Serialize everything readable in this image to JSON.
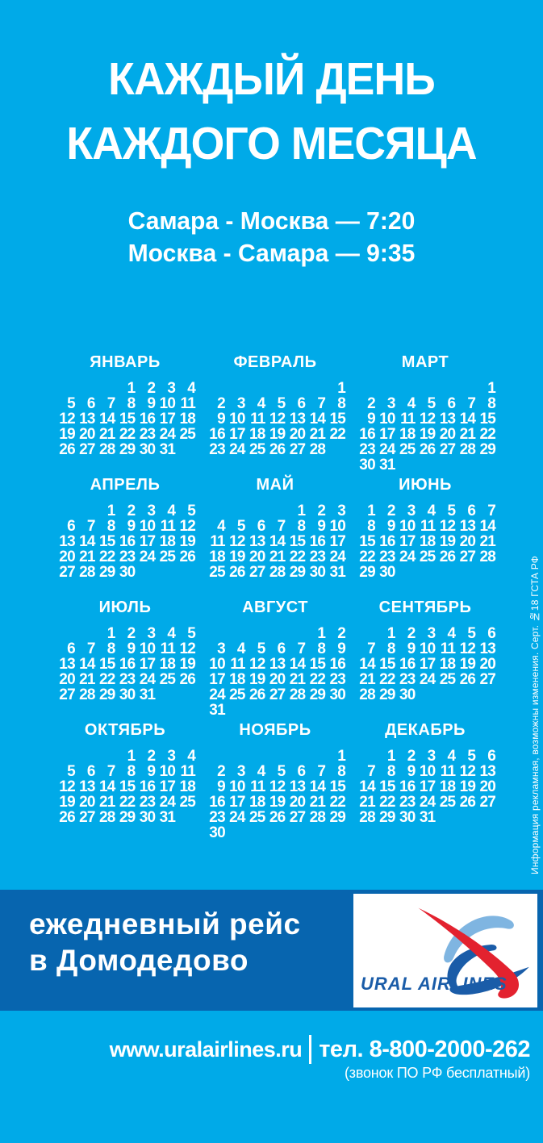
{
  "colors": {
    "background": "#00AAE8",
    "band": "#0765AF",
    "logo_blue": "#1A5CA8",
    "logo_lightblue": "#7FB5E1",
    "logo_red": "#E3222F",
    "text": "#FFFFFF"
  },
  "header": {
    "line1": "КАЖДЫЙ ДЕНЬ",
    "line2": "КАЖДОГО МЕСЯЦА"
  },
  "schedule": {
    "line1": "Самара - Москва — 7:20",
    "line2": "Москва - Самара — 9:35"
  },
  "calendar": {
    "months": [
      {
        "name": "ЯНВАРЬ",
        "weeks": [
          [
            "",
            "",
            "",
            "1",
            "2",
            "3",
            "4"
          ],
          [
            "5",
            "6",
            "7",
            "8",
            "9",
            "10",
            "11"
          ],
          [
            "12",
            "13",
            "14",
            "15",
            "16",
            "17",
            "18"
          ],
          [
            "19",
            "20",
            "21",
            "22",
            "23",
            "24",
            "25"
          ],
          [
            "26",
            "27",
            "28",
            "29",
            "30",
            "31",
            ""
          ]
        ]
      },
      {
        "name": "ФЕВРАЛЬ",
        "weeks": [
          [
            "",
            "",
            "",
            "",
            "",
            "",
            "1"
          ],
          [
            "2",
            "3",
            "4",
            "5",
            "6",
            "7",
            "8"
          ],
          [
            "9",
            "10",
            "11",
            "12",
            "13",
            "14",
            "15"
          ],
          [
            "16",
            "17",
            "18",
            "19",
            "20",
            "21",
            "22"
          ],
          [
            "23",
            "24",
            "25",
            "26",
            "27",
            "28",
            ""
          ]
        ]
      },
      {
        "name": "МАРТ",
        "weeks": [
          [
            "",
            "",
            "",
            "",
            "",
            "",
            "1"
          ],
          [
            "2",
            "3",
            "4",
            "5",
            "6",
            "7",
            "8"
          ],
          [
            "9",
            "10",
            "11",
            "12",
            "13",
            "14",
            "15"
          ],
          [
            "16",
            "17",
            "18",
            "19",
            "20",
            "21",
            "22"
          ],
          [
            "23",
            "24",
            "25",
            "26",
            "27",
            "28",
            "29"
          ],
          [
            "30",
            "31",
            "",
            "",
            "",
            "",
            ""
          ]
        ]
      },
      {
        "name": "АПРЕЛЬ",
        "weeks": [
          [
            "",
            "",
            "1",
            "2",
            "3",
            "4",
            "5"
          ],
          [
            "6",
            "7",
            "8",
            "9",
            "10",
            "11",
            "12"
          ],
          [
            "13",
            "14",
            "15",
            "16",
            "17",
            "18",
            "19"
          ],
          [
            "20",
            "21",
            "22",
            "23",
            "24",
            "25",
            "26"
          ],
          [
            "27",
            "28",
            "29",
            "30",
            "",
            "",
            ""
          ]
        ]
      },
      {
        "name": "МАЙ",
        "weeks": [
          [
            "",
            "",
            "",
            "",
            "1",
            "2",
            "3"
          ],
          [
            "4",
            "5",
            "6",
            "7",
            "8",
            "9",
            "10"
          ],
          [
            "11",
            "12",
            "13",
            "14",
            "15",
            "16",
            "17"
          ],
          [
            "18",
            "19",
            "20",
            "21",
            "22",
            "23",
            "24"
          ],
          [
            "25",
            "26",
            "27",
            "28",
            "29",
            "30",
            "31"
          ]
        ]
      },
      {
        "name": "ИЮНЬ",
        "weeks": [
          [
            "1",
            "2",
            "3",
            "4",
            "5",
            "6",
            "7"
          ],
          [
            "8",
            "9",
            "10",
            "11",
            "12",
            "13",
            "14"
          ],
          [
            "15",
            "16",
            "17",
            "18",
            "19",
            "20",
            "21"
          ],
          [
            "22",
            "23",
            "24",
            "25",
            "26",
            "27",
            "28"
          ],
          [
            "29",
            "30",
            "",
            "",
            "",
            "",
            ""
          ]
        ]
      },
      {
        "name": "ИЮЛЬ",
        "weeks": [
          [
            "",
            "",
            "1",
            "2",
            "3",
            "4",
            "5"
          ],
          [
            "6",
            "7",
            "8",
            "9",
            "10",
            "11",
            "12"
          ],
          [
            "13",
            "14",
            "15",
            "16",
            "17",
            "18",
            "19"
          ],
          [
            "20",
            "21",
            "22",
            "23",
            "24",
            "25",
            "26"
          ],
          [
            "27",
            "28",
            "29",
            "30",
            "31",
            "",
            ""
          ]
        ]
      },
      {
        "name": "АВГУСТ",
        "weeks": [
          [
            "",
            "",
            "",
            "",
            "",
            "1",
            "2"
          ],
          [
            "3",
            "4",
            "5",
            "6",
            "7",
            "8",
            "9"
          ],
          [
            "10",
            "11",
            "12",
            "13",
            "14",
            "15",
            "16"
          ],
          [
            "17",
            "18",
            "19",
            "20",
            "21",
            "22",
            "23"
          ],
          [
            "24",
            "25",
            "26",
            "27",
            "28",
            "29",
            "30"
          ],
          [
            "31",
            "",
            "",
            "",
            "",
            "",
            ""
          ]
        ]
      },
      {
        "name": "СЕНТЯБРЬ",
        "weeks": [
          [
            "",
            "1",
            "2",
            "3",
            "4",
            "5",
            "6"
          ],
          [
            "7",
            "8",
            "9",
            "10",
            "11",
            "12",
            "13"
          ],
          [
            "14",
            "15",
            "16",
            "17",
            "18",
            "19",
            "20"
          ],
          [
            "21",
            "22",
            "23",
            "24",
            "25",
            "26",
            "27"
          ],
          [
            "28",
            "29",
            "30",
            "",
            "",
            "",
            ""
          ]
        ]
      },
      {
        "name": "ОКТЯБРЬ",
        "weeks": [
          [
            "",
            "",
            "",
            "1",
            "2",
            "3",
            "4"
          ],
          [
            "5",
            "6",
            "7",
            "8",
            "9",
            "10",
            "11"
          ],
          [
            "12",
            "13",
            "14",
            "15",
            "16",
            "17",
            "18"
          ],
          [
            "19",
            "20",
            "21",
            "22",
            "23",
            "24",
            "25"
          ],
          [
            "26",
            "27",
            "28",
            "29",
            "30",
            "31",
            ""
          ]
        ]
      },
      {
        "name": "НОЯБРЬ",
        "weeks": [
          [
            "",
            "",
            "",
            "",
            "",
            "",
            "1"
          ],
          [
            "2",
            "3",
            "4",
            "5",
            "6",
            "7",
            "8"
          ],
          [
            "9",
            "10",
            "11",
            "12",
            "13",
            "14",
            "15"
          ],
          [
            "16",
            "17",
            "18",
            "19",
            "20",
            "21",
            "22"
          ],
          [
            "23",
            "24",
            "25",
            "26",
            "27",
            "28",
            "29"
          ],
          [
            "30",
            "",
            "",
            "",
            "",
            "",
            ""
          ]
        ]
      },
      {
        "name": "ДЕКАБРЬ",
        "weeks": [
          [
            "",
            "1",
            "2",
            "3",
            "4",
            "5",
            "6"
          ],
          [
            "7",
            "8",
            "9",
            "10",
            "11",
            "12",
            "13"
          ],
          [
            "14",
            "15",
            "16",
            "17",
            "18",
            "19",
            "20"
          ],
          [
            "21",
            "22",
            "23",
            "24",
            "25",
            "26",
            "27"
          ],
          [
            "28",
            "29",
            "30",
            "31",
            "",
            "",
            ""
          ]
        ]
      }
    ]
  },
  "disclaimer": "Информация рекламная, возможны изменения.  Серт. №18 ГСТА РФ",
  "banner": {
    "line1": "ежедневный рейс",
    "line2": "в Домодедово",
    "brand": "URAL AIRLINES"
  },
  "footer": {
    "website": "www.uralairlines.ru",
    "phone": "тел. 8-800-2000-262",
    "note": "(звонок ПО РФ бесплатный)"
  }
}
